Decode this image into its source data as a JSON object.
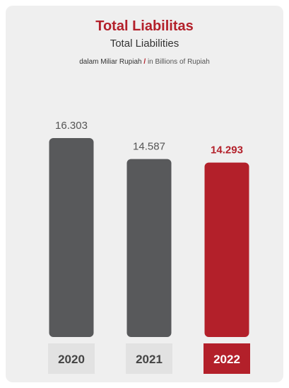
{
  "header": {
    "title": "Total Liabilitas",
    "subtitle": "Total Liabilities",
    "unit_id": "dalam Miliar Rupiah",
    "unit_sep": "/",
    "unit_en": "in Billions of Rupiah"
  },
  "colors": {
    "bar_default": "#58595b",
    "bar_highlight": "#b3202a",
    "label_default": "#555555",
    "label_highlight": "#b3202a",
    "year_box_default": "#e2e2e2",
    "year_box_highlight": "#b3202a"
  },
  "chart_data": {
    "type": "bar",
    "title": "Total Liabilitas",
    "subtitle": "Total Liabilities",
    "categories": [
      "2020",
      "2021",
      "2022"
    ],
    "value_labels": [
      "16.303",
      "14.587",
      "14.293"
    ],
    "values": [
      16303,
      14587,
      14293
    ],
    "highlight_index": 2,
    "xlabel": "",
    "ylabel": "",
    "grid": false
  }
}
